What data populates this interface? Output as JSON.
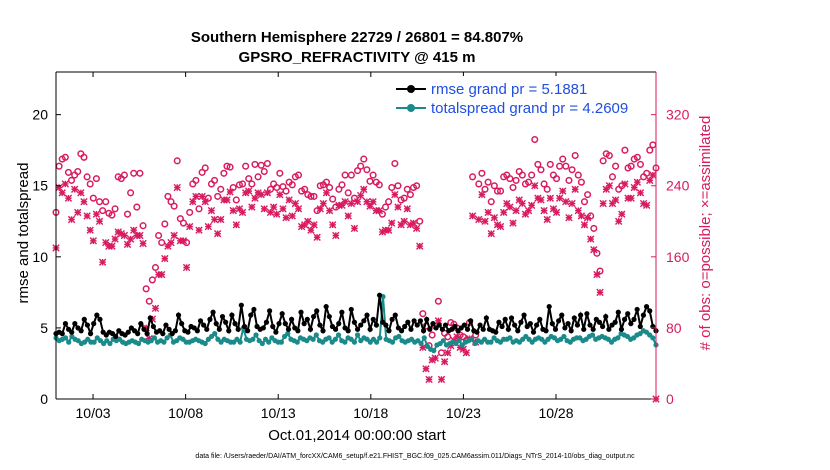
{
  "chart_data": {
    "type": "line",
    "title": "Southern Hemisphere 22729 / 26801 = 84.807%",
    "subtitle": "GPSRO_REFRACTIVITY @ 415 m",
    "xlabel": "Oct.01,2014 00:00:00 start",
    "ylabel": "rmse and totalspread",
    "y2label": "# of obs: o=possible; ×=assimilated",
    "xlim": [
      1,
      33.4
    ],
    "ylim": [
      0,
      23
    ],
    "y2lim": [
      0,
      368
    ],
    "x_ticks": [
      {
        "value": 3,
        "label": "10/03"
      },
      {
        "value": 8,
        "label": "10/08"
      },
      {
        "value": 13,
        "label": "10/13"
      },
      {
        "value": 18,
        "label": "10/18"
      },
      {
        "value": 23,
        "label": "10/23"
      },
      {
        "value": 28,
        "label": "10/28"
      }
    ],
    "y_ticks": [
      0,
      5,
      10,
      15,
      20
    ],
    "y2_ticks": [
      0,
      80,
      160,
      240,
      320
    ],
    "footer": "data file: /Users/raeder/DAI/ATM_forcXX/CAM6_setup/f.e21.FHIST_BGC.f09_025.CAM6assim.011/Diags_NTrS_2014-10/obs_diag_output.nc",
    "series": [
      {
        "name": "rmse grand pr = 5.1881",
        "color": "#000000",
        "marker": "circle",
        "values": [
          4.6,
          4.7,
          4.6,
          5.3,
          4.9,
          4.7,
          5.3,
          5.0,
          4.8,
          5.6,
          5.2,
          4.6,
          5.3,
          5.9,
          5.6,
          4.7,
          4.5,
          4.7,
          4.6,
          4.4,
          4.8,
          4.6,
          4.5,
          4.7,
          5.0,
          4.8,
          4.6,
          5.3,
          4.9,
          4.6,
          5.7,
          5.1,
          4.7,
          4.8,
          4.6,
          5.2,
          4.9,
          4.6,
          4.8,
          5.9,
          5.3,
          4.8,
          4.7,
          5.1,
          5.0,
          4.8,
          5.5,
          5.2,
          4.9,
          5.6,
          6.1,
          5.3,
          4.9,
          5.8,
          5.4,
          4.8,
          5.9,
          5.3,
          4.9,
          6.6,
          5.1,
          4.8,
          5.9,
          6.3,
          5.1,
          4.9,
          5.0,
          5.4,
          6.2,
          5.1,
          4.7,
          5.3,
          6.0,
          5.3,
          4.9,
          5.6,
          5.0,
          4.8,
          6.1,
          5.3,
          5.6,
          4.9,
          5.8,
          6.2,
          5.2,
          4.8,
          6.5,
          5.8,
          5.1,
          4.9,
          5.3,
          6.1,
          5.0,
          4.8,
          6.3,
          5.4,
          4.9,
          5.2,
          5.5,
          5.9,
          4.9,
          5.6,
          5.2,
          7.3,
          5.4,
          5.2,
          4.8,
          5.6,
          5.9,
          5.0,
          4.8,
          5.1,
          5.4,
          4.9,
          5.5,
          5.2,
          5.5,
          4.8,
          5.6,
          4.9,
          5.3,
          5.0,
          5.2,
          4.9,
          5.2,
          4.8,
          4.9,
          5.1,
          4.8,
          5.0,
          5.2,
          4.9,
          5.5,
          4.8,
          4.7,
          5.2,
          4.9,
          5.7,
          4.9,
          4.8,
          4.7,
          5.4,
          5.1,
          5.6,
          4.9,
          5.7,
          5.2,
          4.8,
          5.4,
          5.9,
          5.1,
          5.3,
          4.7,
          5.2,
          5.6,
          4.9,
          4.8,
          6.5,
          5.3,
          4.9,
          5.5,
          5.9,
          5.0,
          5.3,
          4.8,
          5.7,
          5.2,
          5.9,
          4.9,
          6.0,
          5.2,
          4.9,
          5.6,
          5.4,
          5.1,
          5.8,
          4.9,
          5.2,
          5.4,
          6.1,
          4.9,
          5.6,
          6.0,
          5.3,
          5.6,
          6.3,
          5.1,
          5.9,
          6.5,
          6.2,
          5.1,
          4.8
        ]
      },
      {
        "name": "totalspread grand pr = 4.2609",
        "color": "#1a8a8a",
        "marker": "circle",
        "values": [
          4.3,
          4.1,
          4.2,
          4.3,
          4.0,
          4.4,
          4.2,
          4.1,
          3.9,
          4.0,
          4.2,
          4.0,
          4.0,
          4.3,
          4.1,
          3.9,
          4.1,
          3.9,
          4.2,
          4.1,
          4.2,
          4.0,
          3.9,
          4.0,
          4.1,
          4.0,
          3.9,
          4.2,
          4.1,
          4.0,
          4.1,
          4.3,
          4.0,
          4.1,
          4.0,
          4.3,
          4.5,
          4.0,
          4.1,
          4.3,
          4.2,
          4.0,
          4.0,
          4.1,
          4.2,
          4.1,
          4.0,
          3.9,
          4.2,
          4.4,
          4.6,
          4.2,
          4.0,
          4.2,
          4.1,
          4.0,
          4.0,
          4.2,
          4.0,
          5.0,
          4.2,
          4.1,
          4.2,
          4.5,
          4.1,
          3.9,
          4.2,
          4.0,
          4.3,
          4.1,
          4.0,
          4.0,
          4.4,
          4.6,
          4.2,
          4.1,
          4.0,
          4.3,
          4.2,
          4.1,
          4.3,
          4.2,
          4.5,
          4.1,
          4.0,
          4.2,
          4.3,
          4.0,
          4.2,
          4.5,
          4.1,
          4.0,
          4.3,
          4.2,
          4.0,
          4.5,
          4.1,
          4.3,
          4.2,
          4.0,
          4.2,
          4.0,
          4.3,
          7.2,
          4.2,
          4.1,
          4.0,
          4.3,
          4.4,
          4.1,
          4.0,
          4.1,
          4.2,
          4.0,
          4.1,
          3.9,
          4.3,
          3.7,
          3.5,
          3.4,
          3.8,
          3.9,
          4.1,
          3.8,
          3.9,
          4.0,
          3.9,
          4.1,
          3.8,
          4.0,
          4.1,
          4.2,
          3.9,
          4.1,
          4.0,
          4.2,
          4.0,
          4.0,
          4.3,
          4.1,
          4.0,
          4.2,
          4.2,
          4.3,
          4.0,
          4.1,
          4.0,
          4.2,
          4.4,
          4.2,
          4.0,
          4.2,
          4.3,
          4.2,
          4.0,
          4.2,
          4.4,
          4.3,
          4.1,
          4.2,
          4.4,
          4.1,
          4.0,
          4.2,
          4.3,
          4.3,
          4.1,
          4.2,
          4.4,
          4.5,
          4.2,
          4.3,
          4.4,
          4.3,
          4.2,
          4.0,
          4.2,
          4.3,
          4.6,
          4.5,
          4.4,
          4.2,
          4.3,
          4.5,
          4.6,
          4.8,
          4.7,
          4.5,
          4.3,
          3.8
        ]
      },
      {
        "name": "possible",
        "axis": "right",
        "color": "#d81b60",
        "marker": "o",
        "values": [
          210,
          262,
          270,
          272,
          255,
          246,
          252,
          256,
          276,
          272,
          250,
          242,
          226,
          248,
          222,
          212,
          222,
          209,
          207,
          214,
          250,
          248,
          252,
          208,
          232,
          254,
          216,
          254,
          195,
          124,
          110,
          134,
          148,
          184,
          176,
          197,
          228,
          222,
          217,
          268,
          203,
          198,
          176,
          210,
          242,
          246,
          214,
          255,
          260,
          226,
          242,
          246,
          228,
          236,
          254,
          262,
          261,
          238,
          224,
          241,
          242,
          262,
          248,
          242,
          264,
          250,
          263,
          256,
          265,
          236,
          242,
          238,
          254,
          239,
          234,
          244,
          241,
          250,
          252,
          234,
          236,
          230,
          228,
          228,
          212,
          240,
          241,
          244,
          238,
          225,
          216,
          236,
          241,
          252,
          232,
          252,
          226,
          257,
          262,
          270,
          258,
          245,
          252,
          244,
          241,
          208,
          216,
          222,
          238,
          265,
          240,
          224,
          226,
          236,
          230,
          238,
          240,
          200,
          96,
          82,
          60,
          72,
          82,
          110,
          52,
          74,
          70,
          86,
          84,
          80,
          72,
          70,
          66,
          86,
          250,
          72,
          242,
          254,
          236,
          244,
          222,
          240,
          234,
          234,
          250,
          252,
          248,
          238,
          246,
          256,
          252,
          242,
          244,
          252,
          292,
          264,
          258,
          242,
          236,
          264,
          252,
          248,
          262,
          270,
          262,
          246,
          258,
          274,
          252,
          244,
          222,
          230,
          206,
          192,
          164,
          144,
          268,
          276,
          274,
          250,
          262,
          236,
          240,
          280,
          260,
          262,
          270,
          272,
          264,
          250,
          254,
          280,
          286,
          260
        ]
      },
      {
        "name": "assimilated",
        "axis": "right",
        "color": "#d81b60",
        "marker": "x",
        "values": [
          170,
          238,
          232,
          242,
          226,
          202,
          236,
          210,
          232,
          222,
          206,
          190,
          178,
          208,
          200,
          154,
          176,
          172,
          172,
          180,
          188,
          186,
          184,
          174,
          180,
          190,
          184,
          184,
          175,
          80,
          68,
          90,
          102,
          140,
          140,
          158,
          172,
          176,
          184,
          238,
          178,
          178,
          148,
          194,
          222,
          228,
          190,
          228,
          222,
          194,
          212,
          202,
          186,
          202,
          224,
          224,
          233,
          212,
          196,
          214,
          210,
          232,
          234,
          216,
          226,
          232,
          230,
          214,
          232,
          210,
          216,
          208,
          230,
          214,
          204,
          224,
          206,
          220,
          214,
          194,
          196,
          200,
          190,
          196,
          182,
          214,
          220,
          232,
          212,
          196,
          184,
          218,
          218,
          222,
          206,
          220,
          192,
          222,
          229,
          236,
          222,
          217,
          222,
          212,
          212,
          188,
          190,
          190,
          198,
          230,
          216,
          196,
          200,
          214,
          196,
          198,
          192,
          172,
          58,
          34,
          22,
          44,
          46,
          88,
          22,
          42,
          52,
          60,
          66,
          70,
          58,
          56,
          52,
          68,
          206,
          64,
          202,
          230,
          200,
          210,
          186,
          204,
          196,
          194,
          210,
          220,
          216,
          198,
          212,
          224,
          220,
          208,
          212,
          218,
          240,
          226,
          224,
          212,
          202,
          226,
          214,
          210,
          226,
          234,
          222,
          204,
          220,
          236,
          212,
          206,
          196,
          204,
          180,
          168,
          140,
          120,
          220,
          236,
          240,
          220,
          224,
          200,
          208,
          242,
          226,
          226,
          238,
          244,
          232,
          220,
          218,
          246,
          252,
          0
        ]
      }
    ],
    "legend": [
      {
        "label": "rmse grand pr = 5.1881",
        "color": "#000000"
      },
      {
        "label": "totalspread grand pr = 4.2609",
        "color": "#1a8a8a"
      }
    ],
    "legend_position": "top-right"
  }
}
